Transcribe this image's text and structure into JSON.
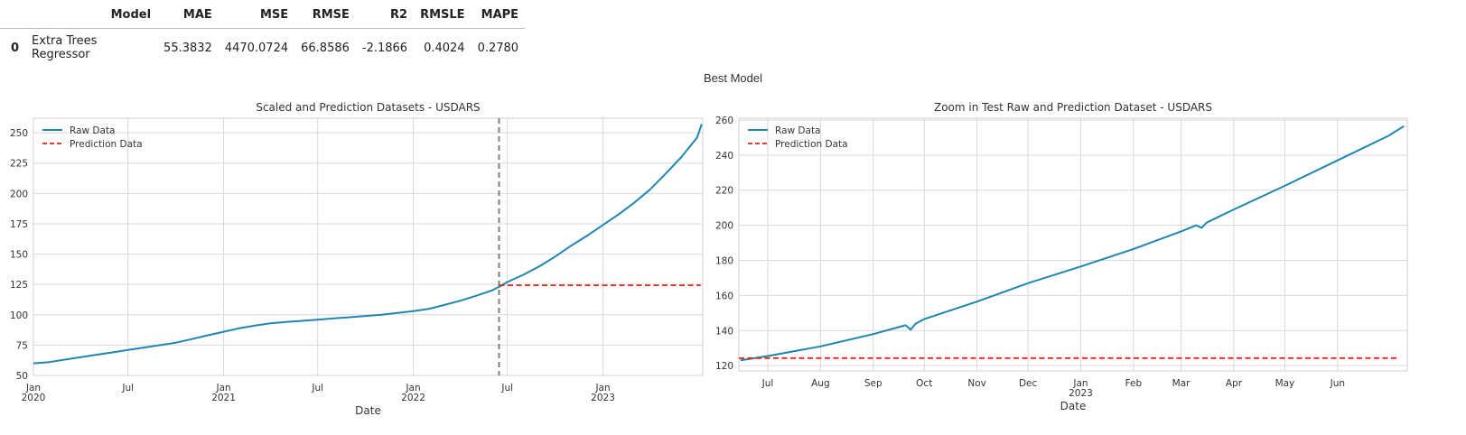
{
  "metrics_table": {
    "columns": [
      "",
      "Model",
      "MAE",
      "MSE",
      "RMSE",
      "R2",
      "RMSLE",
      "MAPE"
    ],
    "rows": [
      [
        "0",
        "Extra Trees Regressor",
        "55.3832",
        "4470.0724",
        "66.8586",
        "-2.1866",
        "0.4024",
        "0.2780"
      ]
    ]
  },
  "suptitle": "Best Model",
  "colors": {
    "raw": "#1f86b0",
    "prediction": "#e8241c",
    "split": "#7f7f7f",
    "grid": "#d9d9d9"
  },
  "chart_data": [
    {
      "type": "line",
      "title": "Scaled and Prediction Datasets - USDARS",
      "xlabel": "Date",
      "ylabel": "",
      "xlim": [
        "2020-01-01",
        "2023-07-12"
      ],
      "ylim": [
        50,
        262
      ],
      "xticks": [
        {
          "date": "2020-01-01",
          "label": "Jan",
          "sub": "2020"
        },
        {
          "date": "2020-07-01",
          "label": "Jul",
          "sub": ""
        },
        {
          "date": "2021-01-01",
          "label": "Jan",
          "sub": "2021"
        },
        {
          "date": "2021-07-01",
          "label": "Jul",
          "sub": ""
        },
        {
          "date": "2022-01-01",
          "label": "Jan",
          "sub": "2022"
        },
        {
          "date": "2022-07-01",
          "label": "Jul",
          "sub": ""
        },
        {
          "date": "2023-01-01",
          "label": "Jan",
          "sub": "2023"
        }
      ],
      "yticks": [
        50,
        75,
        100,
        125,
        150,
        175,
        200,
        225,
        250
      ],
      "grid": true,
      "legend": "top-left",
      "split_date": "2022-06-15",
      "series": [
        {
          "name": "Raw Data",
          "style": "solid",
          "x": [
            "2020-01-01",
            "2020-02-01",
            "2020-03-01",
            "2020-04-01",
            "2020-05-01",
            "2020-06-01",
            "2020-07-01",
            "2020-08-01",
            "2020-09-01",
            "2020-10-01",
            "2020-11-01",
            "2020-12-01",
            "2021-01-01",
            "2021-02-01",
            "2021-03-01",
            "2021-04-01",
            "2021-05-01",
            "2021-06-01",
            "2021-07-01",
            "2021-08-01",
            "2021-09-01",
            "2021-10-01",
            "2021-11-01",
            "2021-12-01",
            "2022-01-01",
            "2022-02-01",
            "2022-03-01",
            "2022-04-01",
            "2022-05-01",
            "2022-06-01",
            "2022-06-15",
            "2022-07-01",
            "2022-08-01",
            "2022-09-01",
            "2022-10-01",
            "2022-11-01",
            "2022-12-01",
            "2023-01-01",
            "2023-02-01",
            "2023-03-01",
            "2023-04-01",
            "2023-05-01",
            "2023-06-01",
            "2023-07-01",
            "2023-07-10"
          ],
          "y": [
            60,
            61,
            63,
            65,
            67,
            69,
            71,
            73,
            75,
            77,
            80,
            83,
            86,
            89,
            91,
            93,
            94,
            95,
            96,
            97,
            98,
            99,
            100,
            101.5,
            103,
            105,
            108,
            111.5,
            115.5,
            120,
            123,
            127,
            133,
            140,
            148,
            157,
            165,
            174,
            183,
            192,
            203,
            216,
            230,
            246,
            257
          ]
        },
        {
          "name": "Prediction Data",
          "style": "dashed",
          "x": [
            "2022-06-15",
            "2023-07-08"
          ],
          "y": [
            124.3,
            124.3
          ]
        }
      ]
    },
    {
      "type": "line",
      "title": "Zoom in Test Raw and Prediction Dataset - USDARS",
      "xlabel": "Date",
      "ylabel": "",
      "xlim": [
        "2022-06-14",
        "2023-07-12"
      ],
      "ylim": [
        117,
        261
      ],
      "xticks": [
        {
          "date": "2022-07-01",
          "label": "Jul",
          "sub": ""
        },
        {
          "date": "2022-08-01",
          "label": "Aug",
          "sub": ""
        },
        {
          "date": "2022-09-01",
          "label": "Sep",
          "sub": ""
        },
        {
          "date": "2022-10-01",
          "label": "Oct",
          "sub": ""
        },
        {
          "date": "2022-11-01",
          "label": "Nov",
          "sub": ""
        },
        {
          "date": "2022-12-01",
          "label": "Dec",
          "sub": ""
        },
        {
          "date": "2023-01-01",
          "label": "Jan",
          "sub": "2023"
        },
        {
          "date": "2023-02-01",
          "label": "Feb",
          "sub": ""
        },
        {
          "date": "2023-03-01",
          "label": "Mar",
          "sub": ""
        },
        {
          "date": "2023-04-01",
          "label": "Apr",
          "sub": ""
        },
        {
          "date": "2023-05-01",
          "label": "May",
          "sub": ""
        },
        {
          "date": "2023-06-01",
          "label": "Jun",
          "sub": ""
        }
      ],
      "yticks": [
        120,
        140,
        160,
        180,
        200,
        220,
        240,
        260
      ],
      "grid": true,
      "legend": "top-left",
      "series": [
        {
          "name": "Raw Data",
          "style": "solid",
          "x": [
            "2022-06-15",
            "2022-07-01",
            "2022-08-01",
            "2022-09-01",
            "2022-09-20",
            "2022-09-23",
            "2022-09-26",
            "2022-10-01",
            "2022-11-01",
            "2022-12-01",
            "2023-01-01",
            "2023-02-01",
            "2023-03-01",
            "2023-03-10",
            "2023-03-13",
            "2023-03-16",
            "2023-04-01",
            "2023-05-01",
            "2023-06-01",
            "2023-07-01",
            "2023-07-10"
          ],
          "y": [
            123,
            125.5,
            131,
            138,
            143,
            140.5,
            144,
            146.5,
            156.5,
            167,
            176.5,
            186.5,
            196.5,
            200,
            198.5,
            201.5,
            209,
            222.5,
            237,
            251,
            256.5
          ]
        },
        {
          "name": "Prediction Data",
          "style": "dashed",
          "x": [
            "2022-06-14",
            "2023-07-07"
          ],
          "y": [
            124.3,
            124.3
          ]
        }
      ]
    }
  ]
}
